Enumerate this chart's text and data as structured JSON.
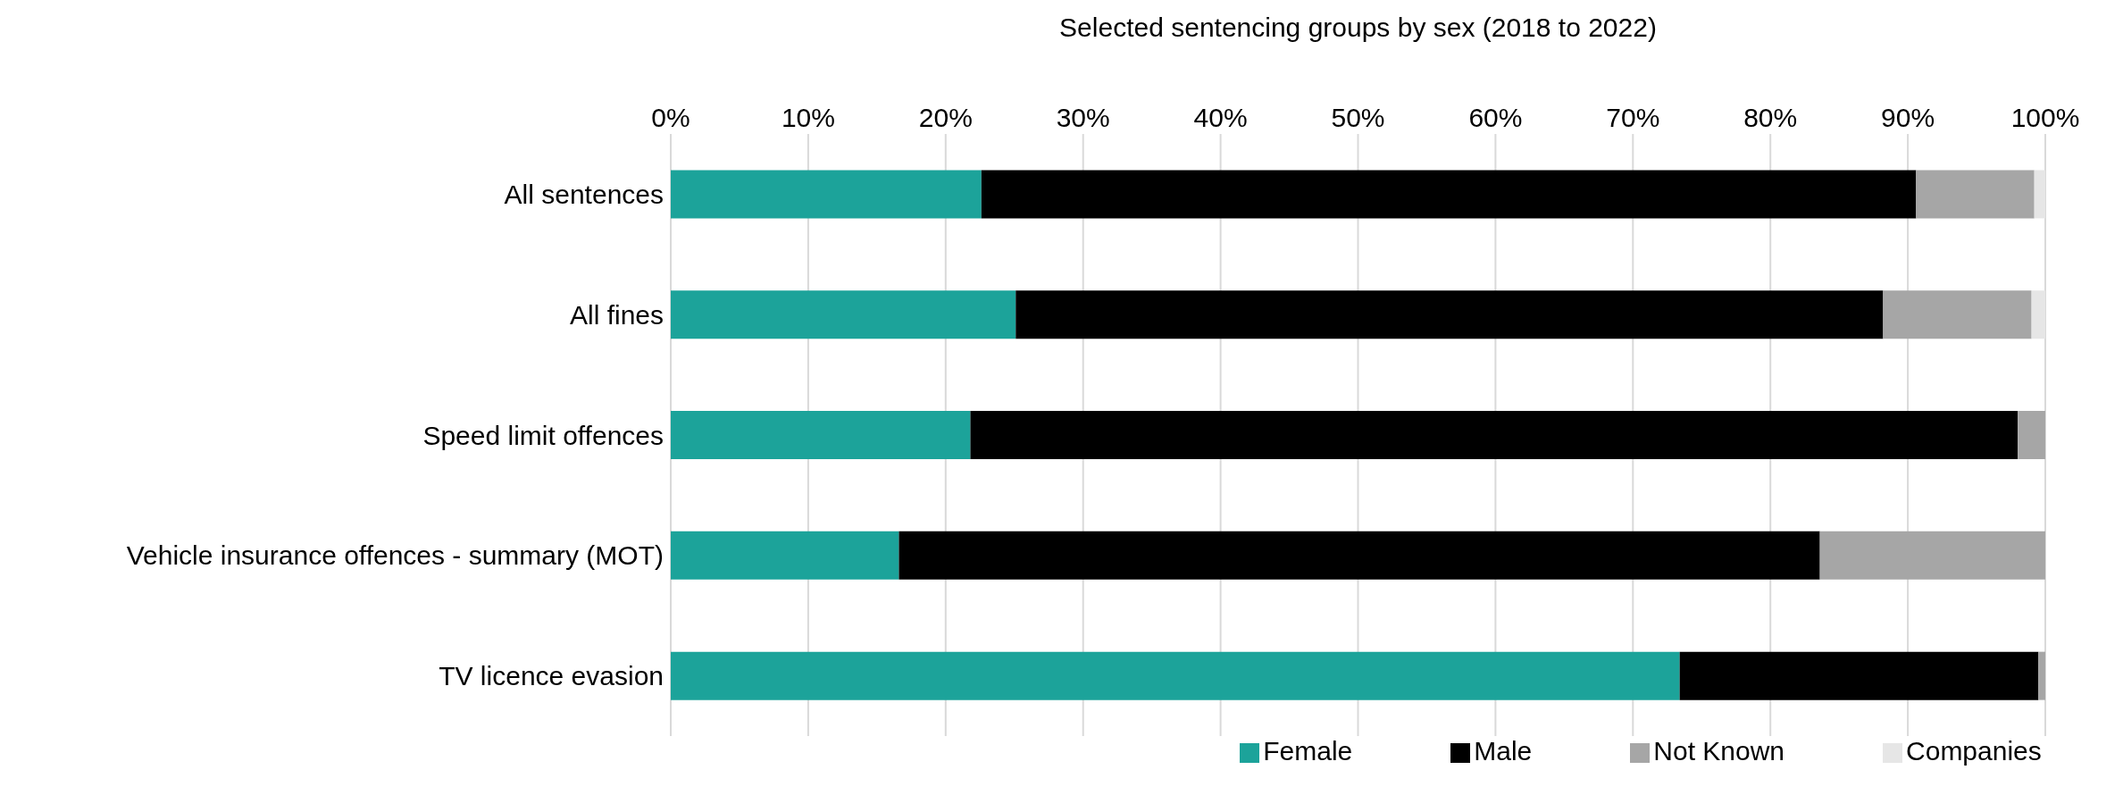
{
  "chart_data": {
    "type": "bar",
    "orientation": "horizontal",
    "stacked": true,
    "title": "Selected sentencing groups by sex (2018 to 2022)",
    "categories": [
      "All sentences",
      "All fines",
      "Speed limit offences",
      "Vehicle insurance offences - summary (MOT)",
      "TV licence evasion"
    ],
    "series": [
      {
        "name": "Female",
        "color": "#1ca39a",
        "values": [
          22.6,
          25.1,
          21.8,
          16.6,
          73.4
        ]
      },
      {
        "name": "Male",
        "color": "#000000",
        "values": [
          68.0,
          63.1,
          76.2,
          67.0,
          26.1
        ]
      },
      {
        "name": "Not Known",
        "color": "#a6a6a6",
        "values": [
          8.6,
          10.8,
          2.0,
          16.4,
          0.5
        ]
      },
      {
        "name": "Companies",
        "color": "#e6e6e6",
        "values": [
          0.8,
          1.0,
          0,
          0,
          0
        ]
      }
    ],
    "xlim": [
      0,
      100
    ],
    "xticks": [
      {
        "value": 0,
        "label": "0%"
      },
      {
        "value": 10,
        "label": "10%"
      },
      {
        "value": 20,
        "label": "20%"
      },
      {
        "value": 30,
        "label": "30%"
      },
      {
        "value": 40,
        "label": "40%"
      },
      {
        "value": 50,
        "label": "50%"
      },
      {
        "value": 60,
        "label": "60%"
      },
      {
        "value": 70,
        "label": "70%"
      },
      {
        "value": 80,
        "label": "80%"
      },
      {
        "value": 90,
        "label": "90%"
      },
      {
        "value": 100,
        "label": "100%"
      }
    ],
    "grid": "x",
    "legend": "bottom"
  }
}
